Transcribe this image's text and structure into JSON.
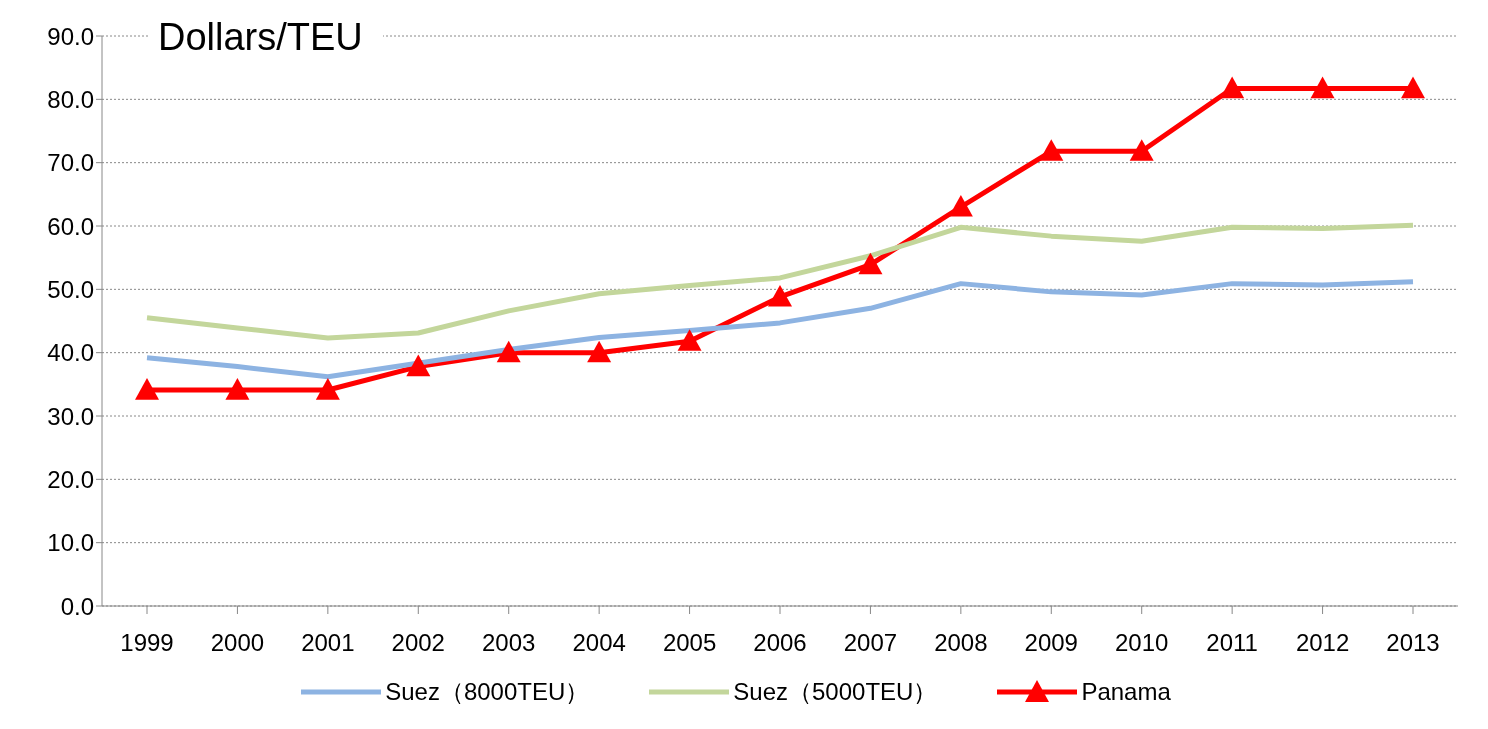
{
  "chart_data": {
    "type": "line",
    "title": "Dollars/TEU",
    "categories": [
      "1999",
      "2000",
      "2001",
      "2002",
      "2003",
      "2004",
      "2005",
      "2006",
      "2007",
      "2008",
      "2009",
      "2010",
      "2011",
      "2012",
      "2013"
    ],
    "series": [
      {
        "name": "Suez（8000TEU）",
        "color": "#8db3e2",
        "marker": "none",
        "values": [
          39.2,
          37.8,
          36.2,
          null,
          40.5,
          42.4,
          43.5,
          44.7,
          47.0,
          50.9,
          49.6,
          49.1,
          50.9,
          50.7,
          51.2
        ]
      },
      {
        "name": "Suez（5000TEU）",
        "color": "#c3d69b",
        "marker": "none",
        "values": [
          45.5,
          43.9,
          42.3,
          43.1,
          46.6,
          49.3,
          50.6,
          51.8,
          55.3,
          59.8,
          58.4,
          57.6,
          59.8,
          59.6,
          60.1
        ]
      },
      {
        "name": "Panama",
        "color": "#ff0000",
        "marker": "triangle",
        "values": [
          34.1,
          34.1,
          34.1,
          37.8,
          40.0,
          40.0,
          41.8,
          48.8,
          53.9,
          63.0,
          71.8,
          71.8,
          81.7,
          81.7,
          81.7
        ]
      }
    ],
    "ylim": [
      0,
      90
    ],
    "yticks": [
      {
        "value": 0,
        "label": "0.0"
      },
      {
        "value": 10,
        "label": "10.0"
      },
      {
        "value": 20,
        "label": "20.0"
      },
      {
        "value": 30,
        "label": "30.0"
      },
      {
        "value": 40,
        "label": "40.0"
      },
      {
        "value": 50,
        "label": "50.0"
      },
      {
        "value": 60,
        "label": "60.0"
      },
      {
        "value": 70,
        "label": "70.0"
      },
      {
        "value": 80,
        "label": "80.0"
      },
      {
        "value": 90,
        "label": "90.0"
      }
    ],
    "grid": "y",
    "legend": "bottom",
    "line_style": "solid"
  }
}
